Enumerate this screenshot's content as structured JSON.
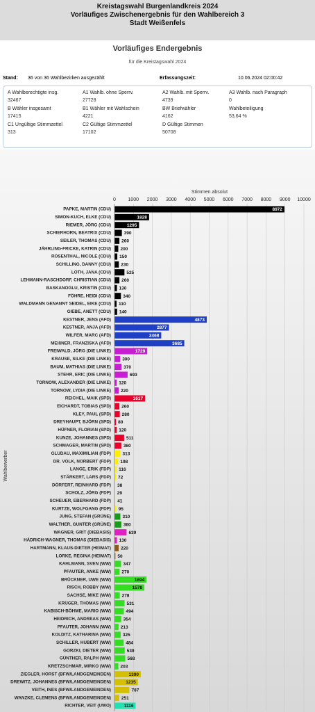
{
  "header": {
    "lines": [
      "Kreistagswahl Burgenlandkreis 2024",
      "Vorläufiges Zwischenergebnis für den Wahlbereich 3",
      "Stadt Weißenfels"
    ]
  },
  "panel": {
    "title": "Vorläufiges Endergebnis",
    "subtitle": "für die Kreistagswahl 2024",
    "stand_label": "Stand:",
    "stand_value": "36 von 36 Wahlbezirken ausgezählt",
    "time_label": "Erfassungszeit:",
    "time_value": "10.06.2024 02:00:42"
  },
  "summary": {
    "rows": [
      [
        {
          "label": "A Wahlberechtigte insg.",
          "value": 32467
        },
        {
          "label": "A1 Wahlb. ohne Sperrv.",
          "value": 27728
        },
        {
          "label": "A2 Wahlb. mit Sperrv.",
          "value": 4739
        },
        {
          "label": "A3 Wahlb. nach Paragraph",
          "value": 0
        }
      ],
      [
        {
          "label": "B Wähler insgesamt",
          "value": 17415
        },
        {
          "label": "B1 Wähler mit Wahlschein",
          "value": 4221
        },
        {
          "label": "BW Briefwähler",
          "value": 4162
        },
        {
          "label": "Wahlbeteiligung",
          "value": "53,64 %"
        }
      ],
      [
        {
          "label": "C1 Ungültige Stimmzettel",
          "value": 313
        },
        {
          "label": "C2 Gültige Stimmzettel",
          "value": 17102
        },
        {
          "label": "D Gültige Stimmen",
          "value": 50708
        }
      ]
    ]
  },
  "chart_data": {
    "type": "hbar",
    "x_label": "Stimmen absolut",
    "y_label": "Wahlbewerber",
    "xlim": [
      0,
      10000
    ],
    "xticks": [
      0,
      1000,
      2000,
      3000,
      4000,
      5000,
      6000,
      7000,
      8000,
      9000,
      10000
    ],
    "grid": true,
    "categories": [
      "PAPKE, MARTIN (CDU)",
      "SIMON-KUCH, ELKE (CDU)",
      "RIEMER, JÖRG (CDU)",
      "SCHIERHORN, BEATRIX (CDU)",
      "SEILER, THOMAS (CDU)",
      "JÄHRLING-FRICKE, KATRIN (CDU)",
      "ROSENTHAL, NICOLE (CDU)",
      "SCHILLING, DANNY (CDU)",
      "LOTH, JANA (CDU)",
      "LEHMANN-RASCHDORF, CHRISTIAN (CDU)",
      "BASKANOGLU, KRISTIN (CDU)",
      "FÖHRE, HEIDI (CDU)",
      "WALDMANN GENANNT SEIDEL, EIKE (CDU)",
      "GIEBE, ANETT (CDU)",
      "KESTNER, JENS (AFD)",
      "KESTNER, ANJA (AFD)",
      "WILFER, MARC (AFD)",
      "MEIßNER, FRANZISKA (AFD)",
      "FREIWALD, JÖRG (DIE LINKE)",
      "KRAUSE, SILKE (DIE LINKE)",
      "BAUM, MATHIAS (DIE LINKE)",
      "STEHR, ERIC (DIE LINKE)",
      "TORNOW, ALEXANDER (DIE LINKE)",
      "TORNOW, LYDIA (DIE LINKE)",
      "REICHEL, MAIK (SPD)",
      "EICHARDT, TOBIAS (SPD)",
      "KLEY, PAUL (SPD)",
      "DREYHAUPT, BJÖRN (SPD)",
      "HÜFNER, FLORIAN (SPD)",
      "KUNZE, JOHANNES (SPD)",
      "SCHMAGER, MARTIN (SPD)",
      "GLUDAU, MAXIMILIAN (FDP)",
      "DR. VOLK, NORBERT (FDP)",
      "LANGE, ERIK (FDP)",
      "STÄRKERT, LARS (FDP)",
      "DÖRFERT, REINHARD (FDP)",
      "SCHOLZ, JÖRG (FDP)",
      "SCHEUER, EBERHARD (FDP)",
      "KURTZE, WOLFGANG (FDP)",
      "JUNG, STEFAN (GRÜNE)",
      "WALTHER, GUNTER (GRÜNE)",
      "WAGNER, GRIT (DIEBASIS)",
      "HÄDRICH-WAGNER, THOMAS (DIEBASIS)",
      "HARTMANN, KLAUS-DIETER (HEIMAT)",
      "LORKE, REGINA (HEIMAT)",
      "KAHLMANN, SVEN (WW)",
      "PFAUTER, ANKE (WW)",
      "BRÜCKNER, UWE (WW)",
      "RISCH, ROBBY (WW)",
      "SACHSE, MIKE (WW)",
      "KRÜGER, THOMAS (WW)",
      "KABISCH-BÖHME, MARIO (WW)",
      "HEIDRICH, ANDREAS (WW)",
      "PFAUTER, JOHANN (WW)",
      "KOLDITZ, KATHARINA (WW)",
      "SCHILLER, HUBERT (WW)",
      "GORZKI, DIETER (WW)",
      "GÜNTHER, RALPH (WW)",
      "KRETZSCHMAR, MIRKO (WW)",
      "ZIEGLER, HORST (BFW/LANDGEMEINDEN)",
      "DREWITZ, JOHANNES (BFW/LANDGEMEINDEN)",
      "VEITH, INES (BFW/LANDGEMEINDEN)",
      "WANZKE, CLEMENS (BFW/LANDGEMEINDEN)",
      "RICHTER, VEIT (UWO)"
    ],
    "values": [
      8972,
      1828,
      1295,
      390,
      260,
      200,
      150,
      230,
      525,
      260,
      130,
      340,
      110,
      140,
      4873,
      2877,
      2468,
      3685,
      1729,
      300,
      370,
      693,
      120,
      220,
      1617,
      260,
      280,
      80,
      120,
      511,
      360,
      313,
      198,
      116,
      72,
      38,
      29,
      41,
      95,
      310,
      360,
      639,
      130,
      220,
      50,
      347,
      270,
      1694,
      1578,
      278,
      531,
      494,
      354,
      213,
      325,
      484,
      539,
      568,
      203,
      1390,
      1235,
      787,
      251,
      1116
    ],
    "colors": [
      "#000000",
      "#000000",
      "#000000",
      "#000000",
      "#000000",
      "#000000",
      "#000000",
      "#000000",
      "#000000",
      "#000000",
      "#000000",
      "#000000",
      "#000000",
      "#000000",
      "#1f3fc4",
      "#1f3fc4",
      "#1f3fc4",
      "#1f3fc4",
      "#c81ed2",
      "#c81ed2",
      "#c81ed2",
      "#c81ed2",
      "#c81ed2",
      "#c81ed2",
      "#e8002a",
      "#e8002a",
      "#e8002a",
      "#e8002a",
      "#e8002a",
      "#e8002a",
      "#e8002a",
      "#ffee00",
      "#ffee00",
      "#ffee00",
      "#ffee00",
      "#ffee00",
      "#ffee00",
      "#ffee00",
      "#ffee00",
      "#1a9a1a",
      "#1a9a1a",
      "#e020c0",
      "#e020c0",
      "#8b5a1a",
      "#8b5a1a",
      "#33dd22",
      "#33dd22",
      "#33dd22",
      "#33dd22",
      "#33dd22",
      "#33dd22",
      "#33dd22",
      "#33dd22",
      "#33dd22",
      "#33dd22",
      "#33dd22",
      "#33dd22",
      "#33dd22",
      "#33dd22",
      "#d4c000",
      "#d4c000",
      "#d4c000",
      "#d4c000",
      "#22e0b0"
    ]
  }
}
